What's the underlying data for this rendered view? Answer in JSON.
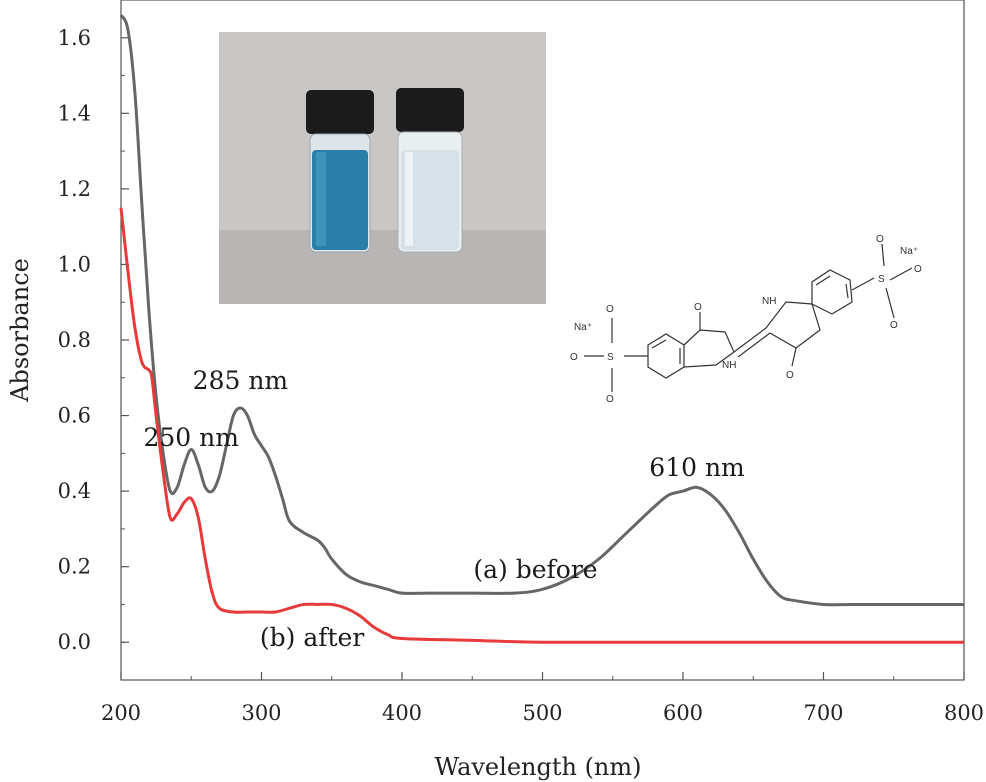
{
  "chart_data": {
    "type": "line",
    "xlabel": "Wavelength (nm)",
    "ylabel": "Absorbance",
    "xlim": [
      200,
      800
    ],
    "ylim": [
      -0.1,
      1.7
    ],
    "x_ticks": [
      200,
      300,
      400,
      500,
      600,
      700,
      800
    ],
    "y_ticks": [
      0.0,
      0.2,
      0.4,
      0.6,
      0.8,
      1.0,
      1.2,
      1.4,
      1.6
    ],
    "y_tick_labels": [
      "0.0",
      "0.2",
      "0.4",
      "0.6",
      "0.8",
      "1.0",
      "1.2",
      "1.4",
      "1.6"
    ],
    "grid": false,
    "series": [
      {
        "label": "(a) before",
        "color": "#666666",
        "x": [
          200,
          205,
          210,
          215,
          220,
          225,
          230,
          235,
          240,
          245,
          250,
          255,
          260,
          265,
          270,
          275,
          280,
          285,
          290,
          295,
          300,
          305,
          310,
          315,
          320,
          330,
          340,
          345,
          350,
          360,
          370,
          380,
          390,
          400,
          420,
          450,
          480,
          500,
          520,
          540,
          560,
          580,
          590,
          600,
          610,
          620,
          630,
          640,
          650,
          660,
          670,
          680,
          700,
          720,
          750,
          800
        ],
        "y": [
          1.66,
          1.62,
          1.45,
          1.15,
          0.87,
          0.65,
          0.5,
          0.4,
          0.41,
          0.47,
          0.51,
          0.47,
          0.41,
          0.4,
          0.44,
          0.52,
          0.6,
          0.62,
          0.6,
          0.55,
          0.52,
          0.49,
          0.44,
          0.38,
          0.32,
          0.29,
          0.27,
          0.25,
          0.22,
          0.18,
          0.16,
          0.15,
          0.14,
          0.13,
          0.13,
          0.13,
          0.13,
          0.14,
          0.17,
          0.22,
          0.29,
          0.36,
          0.39,
          0.4,
          0.41,
          0.39,
          0.35,
          0.29,
          0.22,
          0.16,
          0.12,
          0.11,
          0.1,
          0.1,
          0.1,
          0.1
        ]
      },
      {
        "label": "(b) after",
        "color": "#e83a3a",
        "x": [
          200,
          205,
          210,
          215,
          220,
          222,
          225,
          230,
          235,
          240,
          245,
          250,
          255,
          260,
          265,
          270,
          280,
          290,
          300,
          310,
          320,
          330,
          340,
          350,
          360,
          370,
          380,
          390,
          400,
          450,
          500,
          600,
          700,
          800
        ],
        "y": [
          1.15,
          0.98,
          0.83,
          0.74,
          0.72,
          0.7,
          0.6,
          0.45,
          0.33,
          0.34,
          0.37,
          0.38,
          0.33,
          0.22,
          0.13,
          0.09,
          0.08,
          0.08,
          0.08,
          0.08,
          0.09,
          0.1,
          0.1,
          0.1,
          0.09,
          0.07,
          0.04,
          0.02,
          0.01,
          0.005,
          0.0,
          0.0,
          0.0,
          0.0
        ]
      }
    ],
    "annotations": [
      {
        "text": "285 nm",
        "x": 285,
        "y": 0.67
      },
      {
        "text": "250 nm",
        "x": 250,
        "y": 0.52
      },
      {
        "text": "610 nm",
        "x": 610,
        "y": 0.44
      },
      {
        "text": "(a) before",
        "x": 495,
        "y": 0.17
      },
      {
        "text": "(b) after",
        "x": 336,
        "y": -0.01
      }
    ]
  },
  "structure_labels": {
    "na_left": "Na⁺",
    "na_right": "Na⁺",
    "nh_top": "NH",
    "nh_bottom": "NH",
    "o": "O",
    "s": "S"
  }
}
